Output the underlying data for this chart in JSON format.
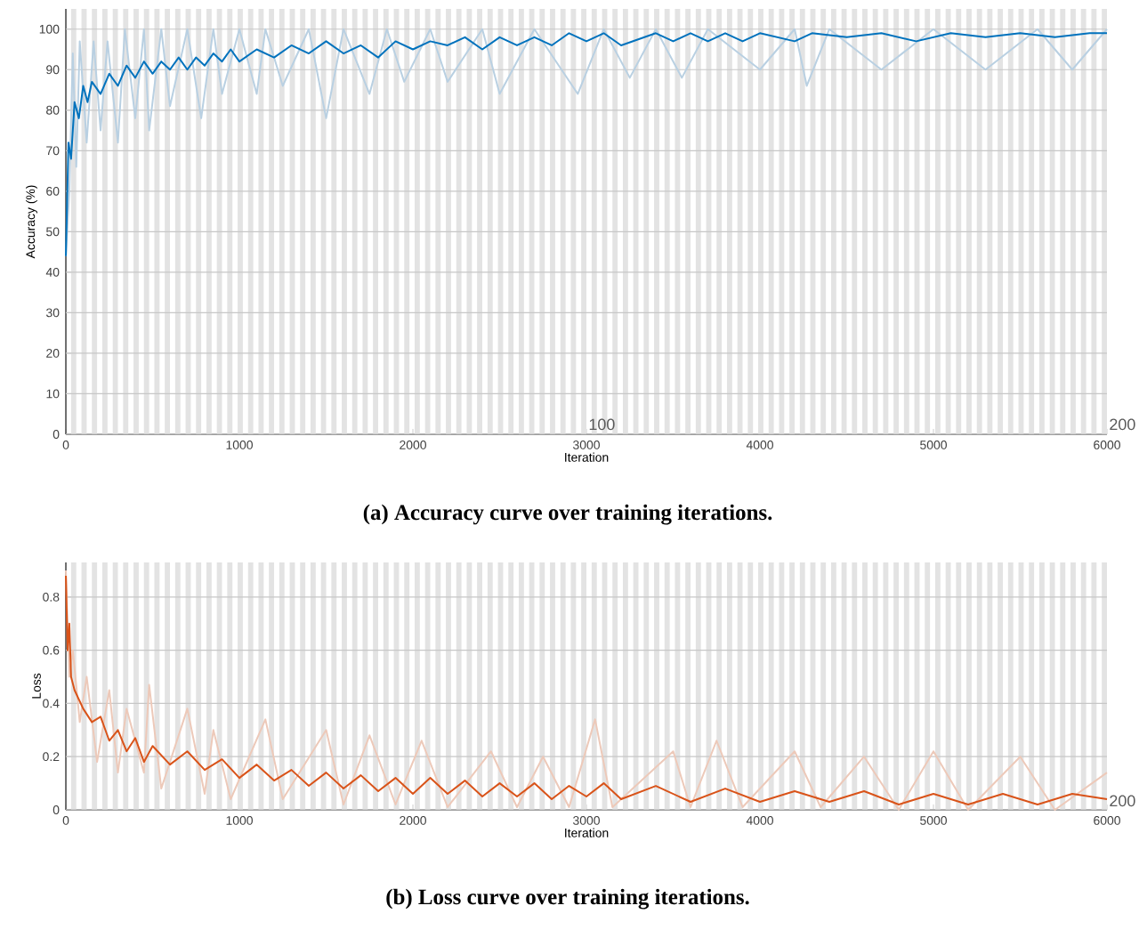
{
  "chart_data": [
    {
      "type": "line",
      "title": "(a) Accuracy curve over training iterations.",
      "xlabel": "Iteration",
      "ylabel": "Accuracy (%)",
      "xlim": [
        0,
        6000
      ],
      "ylim": [
        0,
        105
      ],
      "xticks": [
        0,
        1000,
        2000,
        3000,
        4000,
        5000,
        6000
      ],
      "yticks": [
        0,
        10,
        20,
        30,
        40,
        50,
        60,
        70,
        80,
        90,
        100
      ],
      "grid": "y",
      "bands": [
        {
          "axis": "x",
          "from": 30,
          "to": 60,
          "color": "#e3e3e3"
        },
        {
          "axis": "x",
          "from": 90,
          "to": 120,
          "color": "#e3e3e3"
        },
        {
          "axis": "x",
          "from": 150,
          "to": 180,
          "color": "#e3e3e3"
        },
        {
          "axis": "x",
          "from": 210,
          "to": 240,
          "color": "#e3e3e3"
        },
        {
          "axis": "x",
          "from": 270,
          "to": 300,
          "color": "#e3e3e3"
        },
        {
          "axis": "x",
          "from": 330,
          "to": 360,
          "color": "#e3e3e3"
        },
        {
          "axis": "x",
          "from": 390,
          "to": 420,
          "color": "#e3e3e3"
        },
        {
          "axis": "x",
          "from": 450,
          "to": 480,
          "color": "#e3e3e3"
        },
        {
          "axis": "x",
          "from": 510,
          "to": 540,
          "color": "#e3e3e3"
        },
        {
          "axis": "x",
          "from": 570,
          "to": 600,
          "color": "#e3e3e3"
        },
        {
          "axis": "x",
          "from": 630,
          "to": 660,
          "color": "#e3e3e3"
        },
        {
          "axis": "x",
          "from": 690,
          "to": 720,
          "color": "#e3e3e3"
        },
        {
          "axis": "x",
          "from": 750,
          "to": 780,
          "color": "#e3e3e3"
        },
        {
          "axis": "x",
          "from": 810,
          "to": 840,
          "color": "#e3e3e3"
        },
        {
          "axis": "x",
          "from": 870,
          "to": 900,
          "color": "#e3e3e3"
        },
        {
          "axis": "x",
          "from": 930,
          "to": 960,
          "color": "#e3e3e3"
        },
        {
          "axis": "x",
          "from": 990,
          "to": 1020,
          "color": "#e3e3e3"
        },
        {
          "axis": "x",
          "from": 1050,
          "to": 1080,
          "color": "#e3e3e3"
        },
        {
          "axis": "x",
          "from": 1110,
          "to": 1140,
          "color": "#e3e3e3"
        },
        {
          "axis": "x",
          "from": 1170,
          "to": 1200,
          "color": "#e3e3e3"
        },
        {
          "axis": "x",
          "from": 1230,
          "to": 1260,
          "color": "#e3e3e3"
        },
        {
          "axis": "x",
          "from": 1290,
          "to": 1320,
          "color": "#e3e3e3"
        },
        {
          "axis": "x",
          "from": 1350,
          "to": 1380,
          "color": "#e3e3e3"
        },
        {
          "axis": "x",
          "from": 1410,
          "to": 1440,
          "color": "#e3e3e3"
        },
        {
          "axis": "x",
          "from": 1470,
          "to": 1500,
          "color": "#e3e3e3"
        },
        {
          "axis": "x",
          "from": 1530,
          "to": 1560,
          "color": "#e3e3e3"
        },
        {
          "axis": "x",
          "from": 1590,
          "to": 1620,
          "color": "#e3e3e3"
        },
        {
          "axis": "x",
          "from": 1650,
          "to": 1680,
          "color": "#e3e3e3"
        },
        {
          "axis": "x",
          "from": 1710,
          "to": 1740,
          "color": "#e3e3e3"
        },
        {
          "axis": "x",
          "from": 1770,
          "to": 1800,
          "color": "#e3e3e3"
        },
        {
          "axis": "x",
          "from": 1830,
          "to": 1860,
          "color": "#e3e3e3"
        },
        {
          "axis": "x",
          "from": 1890,
          "to": 1920,
          "color": "#e3e3e3"
        },
        {
          "axis": "x",
          "from": 1950,
          "to": 1980,
          "color": "#e3e3e3"
        },
        {
          "axis": "x",
          "from": 2010,
          "to": 2040,
          "color": "#e3e3e3"
        },
        {
          "axis": "x",
          "from": 2070,
          "to": 2100,
          "color": "#e3e3e3"
        },
        {
          "axis": "x",
          "from": 2130,
          "to": 2160,
          "color": "#e3e3e3"
        },
        {
          "axis": "x",
          "from": 2190,
          "to": 2220,
          "color": "#e3e3e3"
        },
        {
          "axis": "x",
          "from": 2250,
          "to": 2280,
          "color": "#e3e3e3"
        },
        {
          "axis": "x",
          "from": 2310,
          "to": 2340,
          "color": "#e3e3e3"
        },
        {
          "axis": "x",
          "from": 2370,
          "to": 2400,
          "color": "#e3e3e3"
        },
        {
          "axis": "x",
          "from": 2430,
          "to": 2460,
          "color": "#e3e3e3"
        },
        {
          "axis": "x",
          "from": 2490,
          "to": 2520,
          "color": "#e3e3e3"
        },
        {
          "axis": "x",
          "from": 2550,
          "to": 2580,
          "color": "#e3e3e3"
        },
        {
          "axis": "x",
          "from": 2610,
          "to": 2640,
          "color": "#e3e3e3"
        },
        {
          "axis": "x",
          "from": 2670,
          "to": 2700,
          "color": "#e3e3e3"
        },
        {
          "axis": "x",
          "from": 2730,
          "to": 2760,
          "color": "#e3e3e3"
        },
        {
          "axis": "x",
          "from": 2790,
          "to": 2820,
          "color": "#e3e3e3"
        },
        {
          "axis": "x",
          "from": 2850,
          "to": 2880,
          "color": "#e3e3e3"
        },
        {
          "axis": "x",
          "from": 2910,
          "to": 2940,
          "color": "#e3e3e3"
        },
        {
          "axis": "x",
          "from": 2970,
          "to": 3000,
          "color": "#e3e3e3"
        },
        {
          "axis": "x",
          "from": 3030,
          "to": 3060,
          "color": "#e3e3e3"
        },
        {
          "axis": "x",
          "from": 3090,
          "to": 3120,
          "color": "#e3e3e3"
        },
        {
          "axis": "x",
          "from": 3150,
          "to": 3180,
          "color": "#e3e3e3"
        },
        {
          "axis": "x",
          "from": 3210,
          "to": 3240,
          "color": "#e3e3e3"
        },
        {
          "axis": "x",
          "from": 3270,
          "to": 3300,
          "color": "#e3e3e3"
        },
        {
          "axis": "x",
          "from": 3330,
          "to": 3360,
          "color": "#e3e3e3"
        },
        {
          "axis": "x",
          "from": 3390,
          "to": 3420,
          "color": "#e3e3e3"
        },
        {
          "axis": "x",
          "from": 3450,
          "to": 3480,
          "color": "#e3e3e3"
        },
        {
          "axis": "x",
          "from": 3510,
          "to": 3540,
          "color": "#e3e3e3"
        },
        {
          "axis": "x",
          "from": 3570,
          "to": 3600,
          "color": "#e3e3e3"
        },
        {
          "axis": "x",
          "from": 3630,
          "to": 3660,
          "color": "#e3e3e3"
        },
        {
          "axis": "x",
          "from": 3690,
          "to": 3720,
          "color": "#e3e3e3"
        },
        {
          "axis": "x",
          "from": 3750,
          "to": 3780,
          "color": "#e3e3e3"
        },
        {
          "axis": "x",
          "from": 3810,
          "to": 3840,
          "color": "#e3e3e3"
        },
        {
          "axis": "x",
          "from": 3870,
          "to": 3900,
          "color": "#e3e3e3"
        },
        {
          "axis": "x",
          "from": 3930,
          "to": 3960,
          "color": "#e3e3e3"
        },
        {
          "axis": "x",
          "from": 3990,
          "to": 4020,
          "color": "#e3e3e3"
        },
        {
          "axis": "x",
          "from": 4050,
          "to": 4080,
          "color": "#e3e3e3"
        },
        {
          "axis": "x",
          "from": 4110,
          "to": 4140,
          "color": "#e3e3e3"
        },
        {
          "axis": "x",
          "from": 4170,
          "to": 4200,
          "color": "#e3e3e3"
        },
        {
          "axis": "x",
          "from": 4230,
          "to": 4260,
          "color": "#e3e3e3"
        },
        {
          "axis": "x",
          "from": 4290,
          "to": 4320,
          "color": "#e3e3e3"
        },
        {
          "axis": "x",
          "from": 4350,
          "to": 4380,
          "color": "#e3e3e3"
        },
        {
          "axis": "x",
          "from": 4410,
          "to": 4440,
          "color": "#e3e3e3"
        },
        {
          "axis": "x",
          "from": 4470,
          "to": 4500,
          "color": "#e3e3e3"
        },
        {
          "axis": "x",
          "from": 4530,
          "to": 4560,
          "color": "#e3e3e3"
        },
        {
          "axis": "x",
          "from": 4590,
          "to": 4620,
          "color": "#e3e3e3"
        },
        {
          "axis": "x",
          "from": 4650,
          "to": 4680,
          "color": "#e3e3e3"
        },
        {
          "axis": "x",
          "from": 4710,
          "to": 4740,
          "color": "#e3e3e3"
        },
        {
          "axis": "x",
          "from": 4770,
          "to": 4800,
          "color": "#e3e3e3"
        },
        {
          "axis": "x",
          "from": 4830,
          "to": 4860,
          "color": "#e3e3e3"
        },
        {
          "axis": "x",
          "from": 4890,
          "to": 4920,
          "color": "#e3e3e3"
        },
        {
          "axis": "x",
          "from": 4950,
          "to": 4980,
          "color": "#e3e3e3"
        },
        {
          "axis": "x",
          "from": 5010,
          "to": 5040,
          "color": "#e3e3e3"
        },
        {
          "axis": "x",
          "from": 5070,
          "to": 5100,
          "color": "#e3e3e3"
        },
        {
          "axis": "x",
          "from": 5130,
          "to": 5160,
          "color": "#e3e3e3"
        },
        {
          "axis": "x",
          "from": 5190,
          "to": 5220,
          "color": "#e3e3e3"
        },
        {
          "axis": "x",
          "from": 5250,
          "to": 5280,
          "color": "#e3e3e3"
        },
        {
          "axis": "x",
          "from": 5310,
          "to": 5340,
          "color": "#e3e3e3"
        },
        {
          "axis": "x",
          "from": 5370,
          "to": 5400,
          "color": "#e3e3e3"
        },
        {
          "axis": "x",
          "from": 5430,
          "to": 5460,
          "color": "#e3e3e3"
        },
        {
          "axis": "x",
          "from": 5490,
          "to": 5520,
          "color": "#e3e3e3"
        },
        {
          "axis": "x",
          "from": 5550,
          "to": 5580,
          "color": "#e3e3e3"
        },
        {
          "axis": "x",
          "from": 5610,
          "to": 5640,
          "color": "#e3e3e3"
        },
        {
          "axis": "x",
          "from": 5670,
          "to": 5700,
          "color": "#e3e3e3"
        },
        {
          "axis": "x",
          "from": 5730,
          "to": 5760,
          "color": "#e3e3e3"
        },
        {
          "axis": "x",
          "from": 5790,
          "to": 5820,
          "color": "#e3e3e3"
        },
        {
          "axis": "x",
          "from": 5850,
          "to": 5880,
          "color": "#e3e3e3"
        },
        {
          "axis": "x",
          "from": 5910,
          "to": 5940,
          "color": "#e3e3e3"
        },
        {
          "axis": "x",
          "from": 5970,
          "to": 6000,
          "color": "#e3e3e3"
        }
      ],
      "annotations": [
        "100",
        "200"
      ],
      "series": [
        {
          "color": "#b9d0e2",
          "x": [
            0,
            20,
            40,
            60,
            80,
            120,
            160,
            200,
            240,
            300,
            340,
            400,
            450,
            480,
            550,
            600,
            700,
            780,
            850,
            900,
            1000,
            1100,
            1150,
            1250,
            1400,
            1500,
            1600,
            1750,
            1850,
            1950,
            2100,
            2200,
            2400,
            2500,
            2700,
            2950,
            3100,
            3250,
            3400,
            3550,
            3700,
            4000,
            4200,
            4270,
            4400,
            4700,
            5000,
            5300,
            5600,
            5800,
            6000
          ],
          "values": [
            44,
            60,
            94,
            66,
            97,
            72,
            97,
            75,
            97,
            72,
            100,
            78,
            100,
            75,
            100,
            81,
            100,
            78,
            100,
            84,
            100,
            84,
            100,
            86,
            100,
            78,
            100,
            84,
            100,
            87,
            100,
            87,
            100,
            84,
            100,
            84,
            100,
            88,
            100,
            88,
            100,
            90,
            100,
            86,
            100,
            90,
            100,
            90,
            100,
            90,
            100
          ]
        },
        {
          "color": "#0072bd",
          "x": [
            0,
            15,
            30,
            50,
            75,
            100,
            125,
            150,
            200,
            250,
            300,
            350,
            400,
            450,
            500,
            550,
            600,
            650,
            700,
            750,
            800,
            850,
            900,
            950,
            1000,
            1100,
            1200,
            1300,
            1400,
            1500,
            1600,
            1700,
            1800,
            1900,
            2000,
            2100,
            2200,
            2300,
            2400,
            2500,
            2600,
            2700,
            2800,
            2900,
            3000,
            3100,
            3200,
            3400,
            3500,
            3600,
            3700,
            3800,
            3900,
            4000,
            4200,
            4300,
            4500,
            4700,
            4900,
            5100,
            5300,
            5500,
            5700,
            5900,
            6000
          ],
          "values": [
            44,
            72,
            68,
            82,
            78,
            86,
            82,
            87,
            84,
            89,
            86,
            91,
            88,
            92,
            89,
            92,
            90,
            93,
            90,
            93,
            91,
            94,
            92,
            95,
            92,
            95,
            93,
            96,
            94,
            97,
            94,
            96,
            93,
            97,
            95,
            97,
            96,
            98,
            95,
            98,
            96,
            98,
            96,
            99,
            97,
            99,
            96,
            99,
            97,
            99,
            97,
            99,
            97,
            99,
            97,
            99,
            98,
            99,
            97,
            99,
            98,
            99,
            98,
            99,
            99
          ]
        }
      ]
    },
    {
      "type": "line",
      "title": "(b) Loss curve over training iterations.",
      "xlabel": "Iteration",
      "ylabel": "Loss",
      "xlim": [
        0,
        6000
      ],
      "ylim": [
        0,
        0.93
      ],
      "xticks": [
        0,
        1000,
        2000,
        3000,
        4000,
        5000,
        6000
      ],
      "yticks": [
        0,
        0.2,
        0.4,
        0.6,
        0.8
      ],
      "grid": "y",
      "bands": [
        {
          "axis": "x",
          "from": 30,
          "to": 60,
          "color": "#e3e3e3"
        },
        {
          "axis": "x",
          "from": 90,
          "to": 120,
          "color": "#e3e3e3"
        },
        {
          "axis": "x",
          "from": 150,
          "to": 180,
          "color": "#e3e3e3"
        },
        {
          "axis": "x",
          "from": 210,
          "to": 240,
          "color": "#e3e3e3"
        },
        {
          "axis": "x",
          "from": 270,
          "to": 300,
          "color": "#e3e3e3"
        },
        {
          "axis": "x",
          "from": 330,
          "to": 360,
          "color": "#e3e3e3"
        },
        {
          "axis": "x",
          "from": 390,
          "to": 420,
          "color": "#e3e3e3"
        },
        {
          "axis": "x",
          "from": 450,
          "to": 480,
          "color": "#e3e3e3"
        },
        {
          "axis": "x",
          "from": 510,
          "to": 540,
          "color": "#e3e3e3"
        },
        {
          "axis": "x",
          "from": 570,
          "to": 600,
          "color": "#e3e3e3"
        },
        {
          "axis": "x",
          "from": 630,
          "to": 660,
          "color": "#e3e3e3"
        },
        {
          "axis": "x",
          "from": 690,
          "to": 720,
          "color": "#e3e3e3"
        },
        {
          "axis": "x",
          "from": 750,
          "to": 780,
          "color": "#e3e3e3"
        },
        {
          "axis": "x",
          "from": 810,
          "to": 840,
          "color": "#e3e3e3"
        },
        {
          "axis": "x",
          "from": 870,
          "to": 900,
          "color": "#e3e3e3"
        },
        {
          "axis": "x",
          "from": 930,
          "to": 960,
          "color": "#e3e3e3"
        },
        {
          "axis": "x",
          "from": 990,
          "to": 1020,
          "color": "#e3e3e3"
        },
        {
          "axis": "x",
          "from": 1050,
          "to": 1080,
          "color": "#e3e3e3"
        },
        {
          "axis": "x",
          "from": 1110,
          "to": 1140,
          "color": "#e3e3e3"
        },
        {
          "axis": "x",
          "from": 1170,
          "to": 1200,
          "color": "#e3e3e3"
        },
        {
          "axis": "x",
          "from": 1230,
          "to": 1260,
          "color": "#e3e3e3"
        },
        {
          "axis": "x",
          "from": 1290,
          "to": 1320,
          "color": "#e3e3e3"
        },
        {
          "axis": "x",
          "from": 1350,
          "to": 1380,
          "color": "#e3e3e3"
        },
        {
          "axis": "x",
          "from": 1410,
          "to": 1440,
          "color": "#e3e3e3"
        },
        {
          "axis": "x",
          "from": 1470,
          "to": 1500,
          "color": "#e3e3e3"
        },
        {
          "axis": "x",
          "from": 1530,
          "to": 1560,
          "color": "#e3e3e3"
        },
        {
          "axis": "x",
          "from": 1590,
          "to": 1620,
          "color": "#e3e3e3"
        },
        {
          "axis": "x",
          "from": 1650,
          "to": 1680,
          "color": "#e3e3e3"
        },
        {
          "axis": "x",
          "from": 1710,
          "to": 1740,
          "color": "#e3e3e3"
        },
        {
          "axis": "x",
          "from": 1770,
          "to": 1800,
          "color": "#e3e3e3"
        },
        {
          "axis": "x",
          "from": 1830,
          "to": 1860,
          "color": "#e3e3e3"
        },
        {
          "axis": "x",
          "from": 1890,
          "to": 1920,
          "color": "#e3e3e3"
        },
        {
          "axis": "x",
          "from": 1950,
          "to": 1980,
          "color": "#e3e3e3"
        },
        {
          "axis": "x",
          "from": 2010,
          "to": 2040,
          "color": "#e3e3e3"
        },
        {
          "axis": "x",
          "from": 2070,
          "to": 2100,
          "color": "#e3e3e3"
        },
        {
          "axis": "x",
          "from": 2130,
          "to": 2160,
          "color": "#e3e3e3"
        },
        {
          "axis": "x",
          "from": 2190,
          "to": 2220,
          "color": "#e3e3e3"
        },
        {
          "axis": "x",
          "from": 2250,
          "to": 2280,
          "color": "#e3e3e3"
        },
        {
          "axis": "x",
          "from": 2310,
          "to": 2340,
          "color": "#e3e3e3"
        },
        {
          "axis": "x",
          "from": 2370,
          "to": 2400,
          "color": "#e3e3e3"
        },
        {
          "axis": "x",
          "from": 2430,
          "to": 2460,
          "color": "#e3e3e3"
        },
        {
          "axis": "x",
          "from": 2490,
          "to": 2520,
          "color": "#e3e3e3"
        },
        {
          "axis": "x",
          "from": 2550,
          "to": 2580,
          "color": "#e3e3e3"
        },
        {
          "axis": "x",
          "from": 2610,
          "to": 2640,
          "color": "#e3e3e3"
        },
        {
          "axis": "x",
          "from": 2670,
          "to": 2700,
          "color": "#e3e3e3"
        },
        {
          "axis": "x",
          "from": 2730,
          "to": 2760,
          "color": "#e3e3e3"
        },
        {
          "axis": "x",
          "from": 2790,
          "to": 2820,
          "color": "#e3e3e3"
        },
        {
          "axis": "x",
          "from": 2850,
          "to": 2880,
          "color": "#e3e3e3"
        },
        {
          "axis": "x",
          "from": 2910,
          "to": 2940,
          "color": "#e3e3e3"
        },
        {
          "axis": "x",
          "from": 2970,
          "to": 3000,
          "color": "#e3e3e3"
        },
        {
          "axis": "x",
          "from": 3030,
          "to": 3060,
          "color": "#e3e3e3"
        },
        {
          "axis": "x",
          "from": 3090,
          "to": 3120,
          "color": "#e3e3e3"
        },
        {
          "axis": "x",
          "from": 3150,
          "to": 3180,
          "color": "#e3e3e3"
        },
        {
          "axis": "x",
          "from": 3210,
          "to": 3240,
          "color": "#e3e3e3"
        },
        {
          "axis": "x",
          "from": 3270,
          "to": 3300,
          "color": "#e3e3e3"
        },
        {
          "axis": "x",
          "from": 3330,
          "to": 3360,
          "color": "#e3e3e3"
        },
        {
          "axis": "x",
          "from": 3390,
          "to": 3420,
          "color": "#e3e3e3"
        },
        {
          "axis": "x",
          "from": 3450,
          "to": 3480,
          "color": "#e3e3e3"
        },
        {
          "axis": "x",
          "from": 3510,
          "to": 3540,
          "color": "#e3e3e3"
        },
        {
          "axis": "x",
          "from": 3570,
          "to": 3600,
          "color": "#e3e3e3"
        },
        {
          "axis": "x",
          "from": 3630,
          "to": 3660,
          "color": "#e3e3e3"
        },
        {
          "axis": "x",
          "from": 3690,
          "to": 3720,
          "color": "#e3e3e3"
        },
        {
          "axis": "x",
          "from": 3750,
          "to": 3780,
          "color": "#e3e3e3"
        },
        {
          "axis": "x",
          "from": 3810,
          "to": 3840,
          "color": "#e3e3e3"
        },
        {
          "axis": "x",
          "from": 3870,
          "to": 3900,
          "color": "#e3e3e3"
        },
        {
          "axis": "x",
          "from": 3930,
          "to": 3960,
          "color": "#e3e3e3"
        },
        {
          "axis": "x",
          "from": 3990,
          "to": 4020,
          "color": "#e3e3e3"
        },
        {
          "axis": "x",
          "from": 4050,
          "to": 4080,
          "color": "#e3e3e3"
        },
        {
          "axis": "x",
          "from": 4110,
          "to": 4140,
          "color": "#e3e3e3"
        },
        {
          "axis": "x",
          "from": 4170,
          "to": 4200,
          "color": "#e3e3e3"
        },
        {
          "axis": "x",
          "from": 4230,
          "to": 4260,
          "color": "#e3e3e3"
        },
        {
          "axis": "x",
          "from": 4290,
          "to": 4320,
          "color": "#e3e3e3"
        },
        {
          "axis": "x",
          "from": 4350,
          "to": 4380,
          "color": "#e3e3e3"
        },
        {
          "axis": "x",
          "from": 4410,
          "to": 4440,
          "color": "#e3e3e3"
        },
        {
          "axis": "x",
          "from": 4470,
          "to": 4500,
          "color": "#e3e3e3"
        },
        {
          "axis": "x",
          "from": 4530,
          "to": 4560,
          "color": "#e3e3e3"
        },
        {
          "axis": "x",
          "from": 4590,
          "to": 4620,
          "color": "#e3e3e3"
        },
        {
          "axis": "x",
          "from": 4650,
          "to": 4680,
          "color": "#e3e3e3"
        },
        {
          "axis": "x",
          "from": 4710,
          "to": 4740,
          "color": "#e3e3e3"
        },
        {
          "axis": "x",
          "from": 4770,
          "to": 4800,
          "color": "#e3e3e3"
        },
        {
          "axis": "x",
          "from": 4830,
          "to": 4860,
          "color": "#e3e3e3"
        },
        {
          "axis": "x",
          "from": 4890,
          "to": 4920,
          "color": "#e3e3e3"
        },
        {
          "axis": "x",
          "from": 4950,
          "to": 4980,
          "color": "#e3e3e3"
        },
        {
          "axis": "x",
          "from": 5010,
          "to": 5040,
          "color": "#e3e3e3"
        },
        {
          "axis": "x",
          "from": 5070,
          "to": 5100,
          "color": "#e3e3e3"
        },
        {
          "axis": "x",
          "from": 5130,
          "to": 5160,
          "color": "#e3e3e3"
        },
        {
          "axis": "x",
          "from": 5190,
          "to": 5220,
          "color": "#e3e3e3"
        },
        {
          "axis": "x",
          "from": 5250,
          "to": 5280,
          "color": "#e3e3e3"
        },
        {
          "axis": "x",
          "from": 5310,
          "to": 5340,
          "color": "#e3e3e3"
        },
        {
          "axis": "x",
          "from": 5370,
          "to": 5400,
          "color": "#e3e3e3"
        },
        {
          "axis": "x",
          "from": 5430,
          "to": 5460,
          "color": "#e3e3e3"
        },
        {
          "axis": "x",
          "from": 5490,
          "to": 5520,
          "color": "#e3e3e3"
        },
        {
          "axis": "x",
          "from": 5550,
          "to": 5580,
          "color": "#e3e3e3"
        },
        {
          "axis": "x",
          "from": 5610,
          "to": 5640,
          "color": "#e3e3e3"
        },
        {
          "axis": "x",
          "from": 5670,
          "to": 5700,
          "color": "#e3e3e3"
        },
        {
          "axis": "x",
          "from": 5730,
          "to": 5760,
          "color": "#e3e3e3"
        },
        {
          "axis": "x",
          "from": 5790,
          "to": 5820,
          "color": "#e3e3e3"
        },
        {
          "axis": "x",
          "from": 5850,
          "to": 5880,
          "color": "#e3e3e3"
        },
        {
          "axis": "x",
          "from": 5910,
          "to": 5940,
          "color": "#e3e3e3"
        },
        {
          "axis": "x",
          "from": 5970,
          "to": 6000,
          "color": "#e3e3e3"
        }
      ],
      "annotations": [
        "200"
      ],
      "series": [
        {
          "color": "#edc9b9",
          "x": [
            0,
            20,
            40,
            80,
            120,
            180,
            250,
            300,
            350,
            450,
            480,
            550,
            700,
            800,
            850,
            950,
            1150,
            1250,
            1500,
            1600,
            1750,
            1900,
            2050,
            2200,
            2450,
            2600,
            2750,
            2900,
            3050,
            3150,
            3500,
            3600,
            3750,
            3900,
            4200,
            4350,
            4600,
            4800,
            5000,
            5200,
            5500,
            5700,
            6000
          ],
          "values": [
            0.9,
            0.5,
            0.6,
            0.33,
            0.5,
            0.18,
            0.45,
            0.14,
            0.38,
            0.14,
            0.47,
            0.08,
            0.38,
            0.06,
            0.3,
            0.04,
            0.34,
            0.04,
            0.3,
            0.02,
            0.28,
            0.02,
            0.26,
            0.01,
            0.22,
            0.01,
            0.2,
            0.01,
            0.34,
            0.01,
            0.22,
            0.01,
            0.26,
            0.01,
            0.22,
            0.01,
            0.2,
            0.0,
            0.22,
            0.0,
            0.2,
            0.0,
            0.14
          ]
        },
        {
          "color": "#d95319",
          "x": [
            0,
            10,
            20,
            30,
            50,
            100,
            150,
            200,
            250,
            300,
            350,
            400,
            450,
            500,
            600,
            700,
            800,
            900,
            1000,
            1100,
            1200,
            1300,
            1400,
            1500,
            1600,
            1700,
            1800,
            1900,
            2000,
            2100,
            2200,
            2300,
            2400,
            2500,
            2600,
            2700,
            2800,
            2900,
            3000,
            3100,
            3200,
            3400,
            3600,
            3800,
            4000,
            4200,
            4400,
            4600,
            4800,
            5000,
            5200,
            5400,
            5600,
            5800,
            6000
          ],
          "values": [
            0.88,
            0.6,
            0.7,
            0.5,
            0.45,
            0.38,
            0.33,
            0.35,
            0.26,
            0.3,
            0.22,
            0.27,
            0.18,
            0.24,
            0.17,
            0.22,
            0.15,
            0.19,
            0.12,
            0.17,
            0.11,
            0.15,
            0.09,
            0.14,
            0.08,
            0.13,
            0.07,
            0.12,
            0.06,
            0.12,
            0.06,
            0.11,
            0.05,
            0.1,
            0.05,
            0.1,
            0.04,
            0.09,
            0.05,
            0.1,
            0.04,
            0.09,
            0.03,
            0.08,
            0.03,
            0.07,
            0.03,
            0.07,
            0.02,
            0.06,
            0.02,
            0.06,
            0.02,
            0.06,
            0.04
          ]
        }
      ]
    }
  ]
}
